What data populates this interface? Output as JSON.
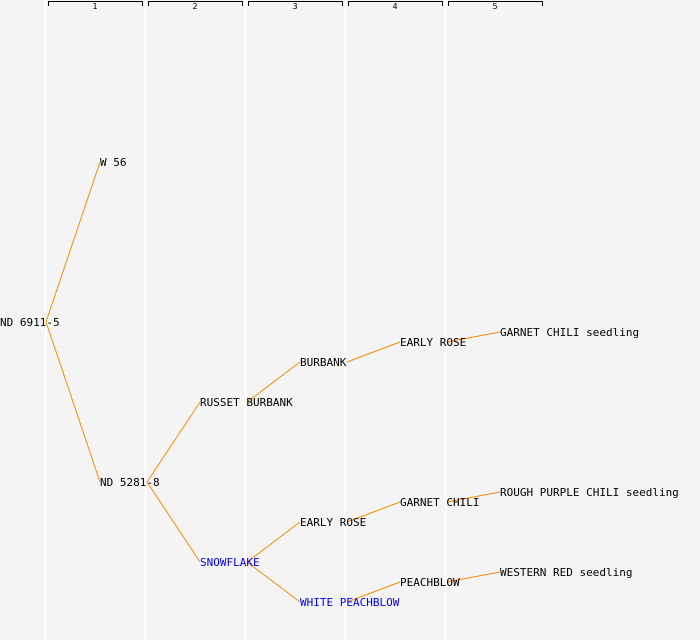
{
  "generations": [
    "1",
    "2",
    "3",
    "4",
    "5"
  ],
  "colors": {
    "background": "#f4f4f4",
    "edge": "#ff8c00",
    "text": "#000000",
    "highlight": "#0000ff"
  },
  "nodes": [
    {
      "id": "n0",
      "label": "ND 6911-5",
      "gen": 0,
      "parent": null,
      "highlight": false
    },
    {
      "id": "n1",
      "label": "W 56",
      "gen": 1,
      "parent": "n0",
      "highlight": false
    },
    {
      "id": "n2",
      "label": "ND 5281-8",
      "gen": 1,
      "parent": "n0",
      "highlight": false
    },
    {
      "id": "n3",
      "label": "RUSSET BURBANK",
      "gen": 2,
      "parent": "n2",
      "highlight": false
    },
    {
      "id": "n4",
      "label": "SNOWFLAKE",
      "gen": 2,
      "parent": "n2",
      "highlight": true
    },
    {
      "id": "n5",
      "label": "BURBANK",
      "gen": 3,
      "parent": "n3",
      "highlight": false
    },
    {
      "id": "n6",
      "label": "EARLY ROSE",
      "gen": 3,
      "parent": "n4",
      "highlight": false
    },
    {
      "id": "n7",
      "label": "WHITE PEACHBLOW",
      "gen": 3,
      "parent": "n4",
      "highlight": true
    },
    {
      "id": "n8",
      "label": "EARLY ROSE",
      "gen": 4,
      "parent": "n5",
      "highlight": false
    },
    {
      "id": "n9",
      "label": "GARNET CHILI",
      "gen": 4,
      "parent": "n6",
      "highlight": false
    },
    {
      "id": "n10",
      "label": "PEACHBLOW",
      "gen": 4,
      "parent": "n7",
      "highlight": false
    },
    {
      "id": "n11",
      "label": "GARNET CHILI seedling",
      "gen": 5,
      "parent": "n8",
      "highlight": false
    },
    {
      "id": "n12",
      "label": "ROUGH PURPLE CHILI seedling",
      "gen": 5,
      "parent": "n9",
      "highlight": false
    },
    {
      "id": "n13",
      "label": "WESTERN RED seedling",
      "gen": 5,
      "parent": "n10",
      "highlight": false
    }
  ]
}
